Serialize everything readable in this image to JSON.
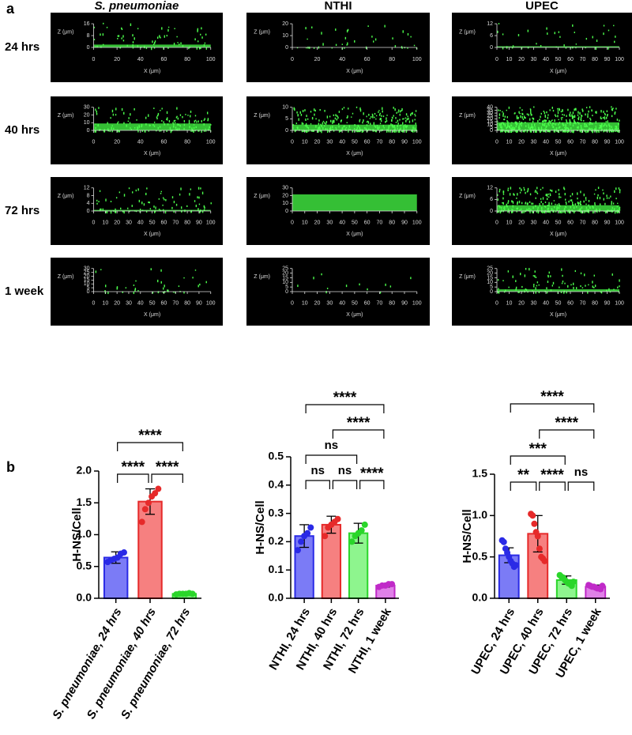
{
  "panel_a": {
    "label": "a",
    "columns": [
      "S. pneumoniae",
      "NTHI",
      "UPEC"
    ],
    "rows": [
      "24 hrs",
      "40 hrs",
      "72 hrs",
      "1 week"
    ],
    "images": [
      [
        {
          "xlabel": "X (μm)",
          "zlabel": "Z (μm)",
          "xlim": [
            0,
            100
          ],
          "xticks": [
            0,
            20,
            40,
            60,
            80,
            100
          ],
          "zlim": [
            0,
            16
          ],
          "zticks": [
            0,
            8,
            16
          ]
        },
        {
          "xlabel": "X (μm)",
          "zlabel": "Z (μm)",
          "xlim": [
            0,
            100
          ],
          "xticks": [
            0,
            20,
            40,
            60,
            80,
            100
          ],
          "zlim": [
            0,
            20
          ],
          "zticks": [
            0,
            10,
            20
          ]
        },
        {
          "xlabel": "X (μm)",
          "zlabel": "Z (μm)",
          "xlim": [
            0,
            100
          ],
          "xticks": [
            0,
            10,
            20,
            30,
            40,
            50,
            60,
            70,
            80,
            90,
            100
          ],
          "zlim": [
            0,
            12
          ],
          "zticks": [
            0,
            6,
            12
          ]
        }
      ],
      [
        {
          "xlabel": "X (μm)",
          "zlabel": "Z (μm)",
          "xlim": [
            0,
            100
          ],
          "xticks": [
            0,
            20,
            40,
            60,
            80,
            100
          ],
          "zlim": [
            0,
            30
          ],
          "zticks": [
            0,
            10,
            20,
            30
          ]
        },
        {
          "xlabel": "X (μm)",
          "zlabel": "Z (μm)",
          "xlim": [
            0,
            100
          ],
          "xticks": [
            0,
            10,
            20,
            30,
            40,
            50,
            60,
            70,
            80,
            90,
            100
          ],
          "zlim": [
            0,
            10
          ],
          "zticks": [
            0,
            5,
            10
          ]
        },
        {
          "xlabel": "X (μm)",
          "zlabel": "Z (μm)",
          "xlim": [
            0,
            100
          ],
          "xticks": [
            0,
            10,
            20,
            30,
            40,
            50,
            60,
            70,
            80,
            90,
            100
          ],
          "zlim": [
            0,
            40
          ],
          "zticks": [
            0,
            5,
            10,
            15,
            20,
            25,
            30,
            35,
            40
          ]
        }
      ],
      [
        {
          "xlabel": "X (μm)",
          "zlabel": "Z (μm)",
          "xlim": [
            0,
            100
          ],
          "xticks": [
            0,
            10,
            20,
            30,
            40,
            50,
            60,
            70,
            80,
            90,
            100
          ],
          "zlim": [
            0,
            12
          ],
          "zticks": [
            0,
            4,
            8,
            12
          ]
        },
        {
          "xlabel": "X (μm)",
          "zlabel": "Z (μm)",
          "xlim": [
            0,
            100
          ],
          "xticks": [
            0,
            10,
            20,
            30,
            40,
            50,
            60,
            70,
            80,
            90,
            100
          ],
          "zlim": [
            0,
            30
          ],
          "zticks": [
            0,
            10,
            20,
            30
          ]
        },
        {
          "xlabel": "X (μm)",
          "zlabel": "Z (μm)",
          "xlim": [
            0,
            100
          ],
          "xticks": [
            0,
            10,
            20,
            30,
            40,
            50,
            60,
            70,
            80,
            90,
            100
          ],
          "zlim": [
            0,
            12
          ],
          "zticks": [
            0,
            6,
            12
          ]
        }
      ],
      [
        {
          "xlabel": "X (μm)",
          "zlabel": "Z (μm)",
          "xlim": [
            0,
            100
          ],
          "xticks": [
            0,
            10,
            20,
            30,
            40,
            50,
            60,
            70,
            80,
            90,
            100
          ],
          "zlim": [
            0,
            30
          ],
          "zticks": [
            0,
            5,
            10,
            15,
            20,
            25,
            30
          ]
        },
        {
          "xlabel": "X (μm)",
          "zlabel": "Z (μm)",
          "xlim": [
            0,
            100
          ],
          "xticks": [
            0,
            10,
            20,
            30,
            40,
            50,
            60,
            70,
            80,
            90,
            100
          ],
          "zlim": [
            0,
            25
          ],
          "zticks": [
            0,
            5,
            10,
            15,
            20,
            25
          ]
        },
        {
          "xlabel": "X (μm)",
          "zlabel": "Z (μm)",
          "xlim": [
            0,
            100
          ],
          "xticks": [
            0,
            10,
            20,
            30,
            40,
            50,
            60,
            70,
            80,
            90,
            100
          ],
          "zlim": [
            0,
            25
          ],
          "zticks": [
            0,
            5,
            10,
            15,
            20,
            25
          ]
        }
      ]
    ]
  },
  "panel_b_label": "b",
  "chart_data": [
    {
      "type": "bar",
      "ylabel": "H-NS/Cell",
      "categories": [
        "S. pneumoniae, 24 hrs",
        "S. pneumoniae, 40 hrs",
        "S. pneumoniae, 72 hrs"
      ],
      "values": [
        0.64,
        1.52,
        0.07
      ],
      "errors": [
        0.09,
        0.2,
        0.01
      ],
      "points": [
        [
          0.57,
          0.6,
          0.62,
          0.64,
          0.7,
          0.72
        ],
        [
          1.2,
          1.4,
          1.5,
          1.6,
          1.65,
          1.72
        ],
        [
          0.06,
          0.07,
          0.07,
          0.07,
          0.08,
          0.07
        ]
      ],
      "colors": [
        "#7b7bf6",
        "#f68080",
        "#8ef58e"
      ],
      "edge_colors": [
        "#2a2ae6",
        "#e62a2a",
        "#2ad62a"
      ],
      "ylim": [
        0,
        2
      ],
      "yticks": [
        {
          "value": 0,
          "label": "0.0"
        },
        0.5,
        {
          "value": 1,
          "label": "1.0"
        },
        1.5,
        {
          "value": 2,
          "label": "2.0"
        }
      ],
      "brackets": [
        {
          "from": 0,
          "to": 1,
          "label": "****"
        },
        {
          "from": 1,
          "to": 2,
          "label": "****"
        },
        {
          "from": 0,
          "to": 2,
          "label": "****"
        }
      ]
    },
    {
      "type": "bar",
      "ylabel": "H-NS/Cell",
      "categories": [
        "NTHI, 24 hrs",
        "NTHI, 40 hrs",
        "NTHI, 72 hrs",
        "NTHI, 1 week"
      ],
      "values": [
        0.22,
        0.26,
        0.23,
        0.045
      ],
      "errors": [
        0.04,
        0.03,
        0.035,
        0.005
      ],
      "points": [
        [
          0.17,
          0.2,
          0.22,
          0.23,
          0.25
        ],
        [
          0.22,
          0.25,
          0.26,
          0.27,
          0.28
        ],
        [
          0.2,
          0.22,
          0.23,
          0.24,
          0.26
        ],
        [
          0.04,
          0.045,
          0.045,
          0.05,
          0.05
        ]
      ],
      "colors": [
        "#7b7bf6",
        "#f68080",
        "#8ef58e",
        "#e080e8"
      ],
      "edge_colors": [
        "#2a2ae6",
        "#e62a2a",
        "#2ad62a",
        "#c02ac8"
      ],
      "ylim": [
        0,
        0.5
      ],
      "yticks": [
        {
          "value": 0,
          "label": "0.0"
        },
        0.1,
        0.2,
        0.3,
        0.4,
        0.5
      ],
      "brackets": [
        {
          "from": 0,
          "to": 1,
          "label": "ns"
        },
        {
          "from": 1,
          "to": 2,
          "label": "ns"
        },
        {
          "from": 0,
          "to": 2,
          "label": "ns"
        },
        {
          "from": 2,
          "to": 3,
          "label": "****"
        },
        {
          "from": 1,
          "to": 3,
          "label": "****"
        },
        {
          "from": 0,
          "to": 3,
          "label": "****"
        }
      ]
    },
    {
      "type": "bar",
      "ylabel": "H-NS/Cell",
      "categories": [
        "UPEC, 24 hrs",
        "UPEC, 40 hrs",
        "UPEC, 72 hrs",
        "UPEC, 1 week"
      ],
      "values": [
        0.52,
        0.78,
        0.22,
        0.14
      ],
      "errors": [
        0.09,
        0.22,
        0.05,
        0.02
      ],
      "points": [
        [
          0.7,
          0.68,
          0.6,
          0.55,
          0.5,
          0.45,
          0.42,
          0.38,
          0.4
        ],
        [
          1.02,
          1.0,
          0.9,
          0.8,
          0.75,
          0.6,
          0.5,
          0.48,
          0.45
        ],
        [
          0.28,
          0.26,
          0.25,
          0.22,
          0.2,
          0.18,
          0.17,
          0.15,
          0.2
        ],
        [
          0.16,
          0.15,
          0.14,
          0.14,
          0.13,
          0.12,
          0.12,
          0.11,
          0.15
        ]
      ],
      "colors": [
        "#7b7bf6",
        "#f68080",
        "#8ef58e",
        "#e080e8"
      ],
      "edge_colors": [
        "#2a2ae6",
        "#e62a2a",
        "#2ad62a",
        "#c02ac8"
      ],
      "ylim": [
        0,
        1.5
      ],
      "yticks": [
        {
          "value": 0,
          "label": "0.0"
        },
        0.5,
        {
          "value": 1,
          "label": "1.0"
        },
        1.5
      ],
      "brackets": [
        {
          "from": 0,
          "to": 1,
          "label": "**"
        },
        {
          "from": 2,
          "to": 3,
          "label": "ns"
        },
        {
          "from": 1,
          "to": 2,
          "label": "****"
        },
        {
          "from": 0,
          "to": 2,
          "label": "***"
        },
        {
          "from": 1,
          "to": 3,
          "label": "****"
        },
        {
          "from": 0,
          "to": 3,
          "label": "****"
        }
      ]
    }
  ]
}
